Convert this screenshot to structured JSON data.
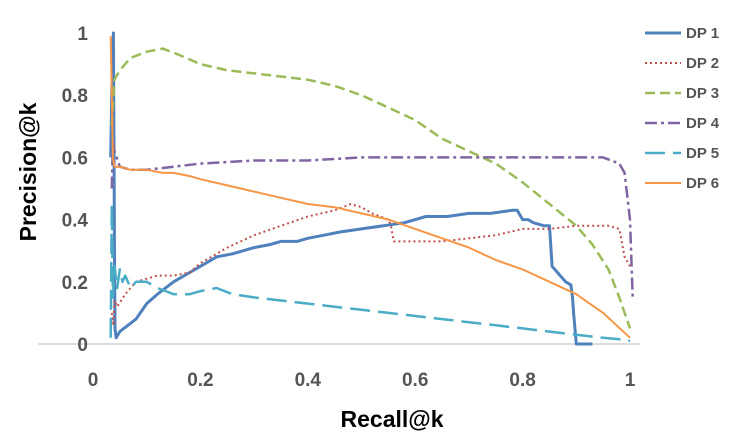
{
  "chart_data": {
    "type": "line",
    "xlabel": "Recall@k",
    "ylabel": "Precision@k",
    "xlim": [
      0,
      1
    ],
    "ylim": [
      0,
      1
    ],
    "xticks": [
      "0",
      "0.2",
      "0.4",
      "0.6",
      "0.8",
      "1"
    ],
    "yticks": [
      "0",
      "0.2",
      "0.4",
      "0.6",
      "0.8",
      "1"
    ],
    "grid": false,
    "legend_position": "right",
    "series": [
      {
        "name": "DP 1",
        "color": "#4F81BD",
        "dash": "solid",
        "width": 3,
        "x": [
          0.033,
          0.036,
          0.038,
          0.04,
          0.041,
          0.043,
          0.05,
          0.08,
          0.1,
          0.12,
          0.15,
          0.18,
          0.2,
          0.23,
          0.26,
          0.28,
          0.3,
          0.33,
          0.35,
          0.38,
          0.4,
          0.43,
          0.46,
          0.5,
          0.54,
          0.58,
          0.62,
          0.66,
          0.7,
          0.74,
          0.78,
          0.79,
          0.8,
          0.81,
          0.82,
          0.84,
          0.85,
          0.855,
          0.86,
          0.87,
          0.88,
          0.89,
          0.893,
          0.895,
          0.9,
          0.92,
          0.93
        ],
        "y": [
          0.6,
          0.9,
          1.0,
          0.3,
          0.05,
          0.02,
          0.04,
          0.08,
          0.13,
          0.16,
          0.2,
          0.23,
          0.25,
          0.28,
          0.29,
          0.3,
          0.31,
          0.32,
          0.33,
          0.33,
          0.34,
          0.35,
          0.36,
          0.37,
          0.38,
          0.39,
          0.41,
          0.41,
          0.42,
          0.42,
          0.43,
          0.43,
          0.4,
          0.4,
          0.39,
          0.38,
          0.38,
          0.25,
          0.24,
          0.22,
          0.2,
          0.19,
          0.15,
          0.1,
          0.0,
          0.0,
          0.0
        ]
      },
      {
        "name": "DP 2",
        "color": "#C0504D",
        "dash": "dotted",
        "width": 2,
        "x": [
          0.035,
          0.038,
          0.04,
          0.045,
          0.06,
          0.08,
          0.1,
          0.12,
          0.15,
          0.18,
          0.2,
          0.25,
          0.3,
          0.35,
          0.4,
          0.45,
          0.48,
          0.5,
          0.52,
          0.55,
          0.555,
          0.56,
          0.58,
          0.6,
          0.65,
          0.7,
          0.75,
          0.8,
          0.85,
          0.9,
          0.93,
          0.96,
          0.98,
          0.99,
          1.0
        ],
        "y": [
          0.1,
          0.06,
          0.14,
          0.12,
          0.16,
          0.2,
          0.21,
          0.22,
          0.22,
          0.23,
          0.26,
          0.31,
          0.35,
          0.38,
          0.41,
          0.43,
          0.45,
          0.44,
          0.42,
          0.4,
          0.38,
          0.33,
          0.33,
          0.33,
          0.33,
          0.34,
          0.35,
          0.37,
          0.37,
          0.38,
          0.38,
          0.38,
          0.37,
          0.28,
          0.25
        ]
      },
      {
        "name": "DP 3",
        "color": "#9BBB59",
        "dash": "dashed",
        "width": 2.5,
        "x": [
          0.035,
          0.04,
          0.05,
          0.07,
          0.1,
          0.13,
          0.16,
          0.2,
          0.25,
          0.3,
          0.35,
          0.4,
          0.45,
          0.5,
          0.55,
          0.6,
          0.65,
          0.7,
          0.75,
          0.8,
          0.85,
          0.9,
          0.93,
          0.96,
          0.98,
          1.0
        ],
        "y": [
          0.7,
          0.85,
          0.88,
          0.92,
          0.94,
          0.95,
          0.93,
          0.9,
          0.88,
          0.87,
          0.86,
          0.85,
          0.83,
          0.8,
          0.76,
          0.72,
          0.66,
          0.62,
          0.58,
          0.52,
          0.45,
          0.38,
          0.32,
          0.24,
          0.15,
          0.05
        ]
      },
      {
        "name": "DP 4",
        "color": "#8064A2",
        "dash": "dashdot",
        "width": 2.5,
        "x": [
          0.035,
          0.037,
          0.04,
          0.05,
          0.07,
          0.1,
          0.15,
          0.2,
          0.3,
          0.4,
          0.5,
          0.6,
          0.7,
          0.8,
          0.85,
          0.9,
          0.95,
          0.98,
          0.99,
          1.0,
          1.005
        ],
        "y": [
          0.5,
          0.65,
          0.62,
          0.57,
          0.56,
          0.56,
          0.57,
          0.58,
          0.59,
          0.59,
          0.6,
          0.6,
          0.6,
          0.6,
          0.6,
          0.6,
          0.6,
          0.58,
          0.55,
          0.4,
          0.15
        ]
      },
      {
        "name": "DP 5",
        "color": "#4BACC6",
        "dash": "longdash",
        "width": 2.5,
        "x": [
          0.033,
          0.035,
          0.037,
          0.04,
          0.045,
          0.05,
          0.055,
          0.06,
          0.07,
          0.08,
          0.1,
          0.12,
          0.15,
          0.18,
          0.2,
          0.23,
          0.26,
          0.3,
          0.35,
          0.4,
          0.45,
          0.5,
          0.55,
          0.6,
          0.65,
          0.7,
          0.75,
          0.8,
          0.85,
          0.9,
          0.95,
          0.98,
          1.0
        ],
        "y": [
          0.02,
          0.45,
          0.15,
          0.25,
          0.18,
          0.24,
          0.2,
          0.22,
          0.18,
          0.2,
          0.2,
          0.18,
          0.16,
          0.16,
          0.17,
          0.18,
          0.16,
          0.15,
          0.14,
          0.13,
          0.12,
          0.11,
          0.1,
          0.09,
          0.08,
          0.07,
          0.06,
          0.05,
          0.04,
          0.03,
          0.02,
          0.015,
          0.01
        ]
      },
      {
        "name": "DP 6",
        "color": "#F79646",
        "dash": "solid",
        "width": 2,
        "x": [
          0.033,
          0.035,
          0.037,
          0.04,
          0.05,
          0.07,
          0.1,
          0.13,
          0.15,
          0.18,
          0.2,
          0.25,
          0.3,
          0.35,
          0.4,
          0.45,
          0.5,
          0.55,
          0.6,
          0.65,
          0.7,
          0.75,
          0.8,
          0.85,
          0.9,
          0.95,
          1.0
        ],
        "y": [
          0.99,
          0.8,
          0.6,
          0.57,
          0.57,
          0.56,
          0.56,
          0.55,
          0.55,
          0.54,
          0.53,
          0.51,
          0.49,
          0.47,
          0.45,
          0.44,
          0.42,
          0.4,
          0.37,
          0.34,
          0.31,
          0.27,
          0.24,
          0.2,
          0.16,
          0.1,
          0.02
        ]
      }
    ]
  }
}
